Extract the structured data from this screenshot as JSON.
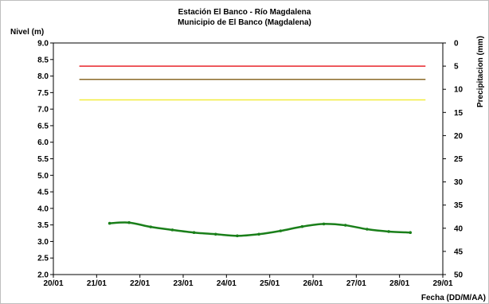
{
  "chart_data": {
    "type": "line",
    "title": "Estación El Banco - Río Magdalena",
    "subtitle": "Municipio de El Banco (Magdalena)",
    "ylabel": "Nivel (m)",
    "y2label": "Precipitacion (mm)",
    "xlabel": "Fecha (DD/M/AA)",
    "ylim": [
      2.0,
      9.0
    ],
    "y2lim": [
      0,
      50
    ],
    "y2_inverted": true,
    "xlim": [
      0,
      9
    ],
    "x_ticks": [
      {
        "pos": 0,
        "label": "20/01"
      },
      {
        "pos": 1,
        "label": "21/01"
      },
      {
        "pos": 2,
        "label": "22/01"
      },
      {
        "pos": 3,
        "label": "23/01"
      },
      {
        "pos": 4,
        "label": "24/01"
      },
      {
        "pos": 5,
        "label": "25/01"
      },
      {
        "pos": 6,
        "label": "26/01"
      },
      {
        "pos": 7,
        "label": "27/01"
      },
      {
        "pos": 8,
        "label": "28/01"
      },
      {
        "pos": 9,
        "label": "29/01"
      }
    ],
    "y_ticks": [
      "2.0",
      "2.5",
      "3.0",
      "3.5",
      "4.0",
      "4.5",
      "5.0",
      "5.5",
      "6.0",
      "6.5",
      "7.0",
      "7.5",
      "8.0",
      "8.5",
      "9.0"
    ],
    "y2_ticks": [
      "0",
      "5",
      "10",
      "15",
      "20",
      "25",
      "30",
      "35",
      "40",
      "45",
      "50"
    ],
    "grid": false,
    "thresholds": [
      {
        "value": 8.3,
        "color": "#e8262b",
        "x_start": 0.6,
        "x_end": 8.6
      },
      {
        "value": 7.9,
        "color": "#8b6b2a",
        "x_start": 0.6,
        "x_end": 8.6
      },
      {
        "value": 7.28,
        "color": "#f2ec3c",
        "x_start": 0.6,
        "x_end": 8.6
      }
    ],
    "series": [
      {
        "color": "#1a7f1a",
        "x": [
          1.3,
          1.75,
          2.25,
          2.75,
          3.25,
          3.75,
          4.25,
          4.75,
          5.25,
          5.75,
          6.25,
          6.75,
          7.25,
          7.75,
          8.25
        ],
        "values": [
          3.55,
          3.57,
          3.44,
          3.35,
          3.27,
          3.22,
          3.17,
          3.22,
          3.32,
          3.45,
          3.53,
          3.49,
          3.37,
          3.3,
          3.27
        ]
      }
    ]
  }
}
